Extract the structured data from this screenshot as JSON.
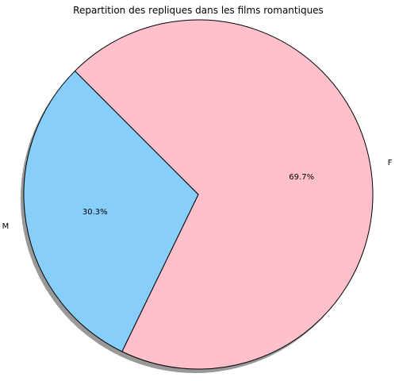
{
  "chart_data": {
    "type": "pie",
    "title": "Repartition des repliques dans les films romantiques",
    "categories": [
      "F",
      "M"
    ],
    "values": [
      69.7,
      30.3
    ],
    "autopct": [
      "69.7%",
      "30.3%"
    ],
    "colors": [
      "#ffc0cb",
      "#87cefa"
    ],
    "edgecolor": "#000000",
    "shadow": true,
    "shadow_color": "#999999",
    "start_angle_deg": 135,
    "direction": "clockwise"
  }
}
